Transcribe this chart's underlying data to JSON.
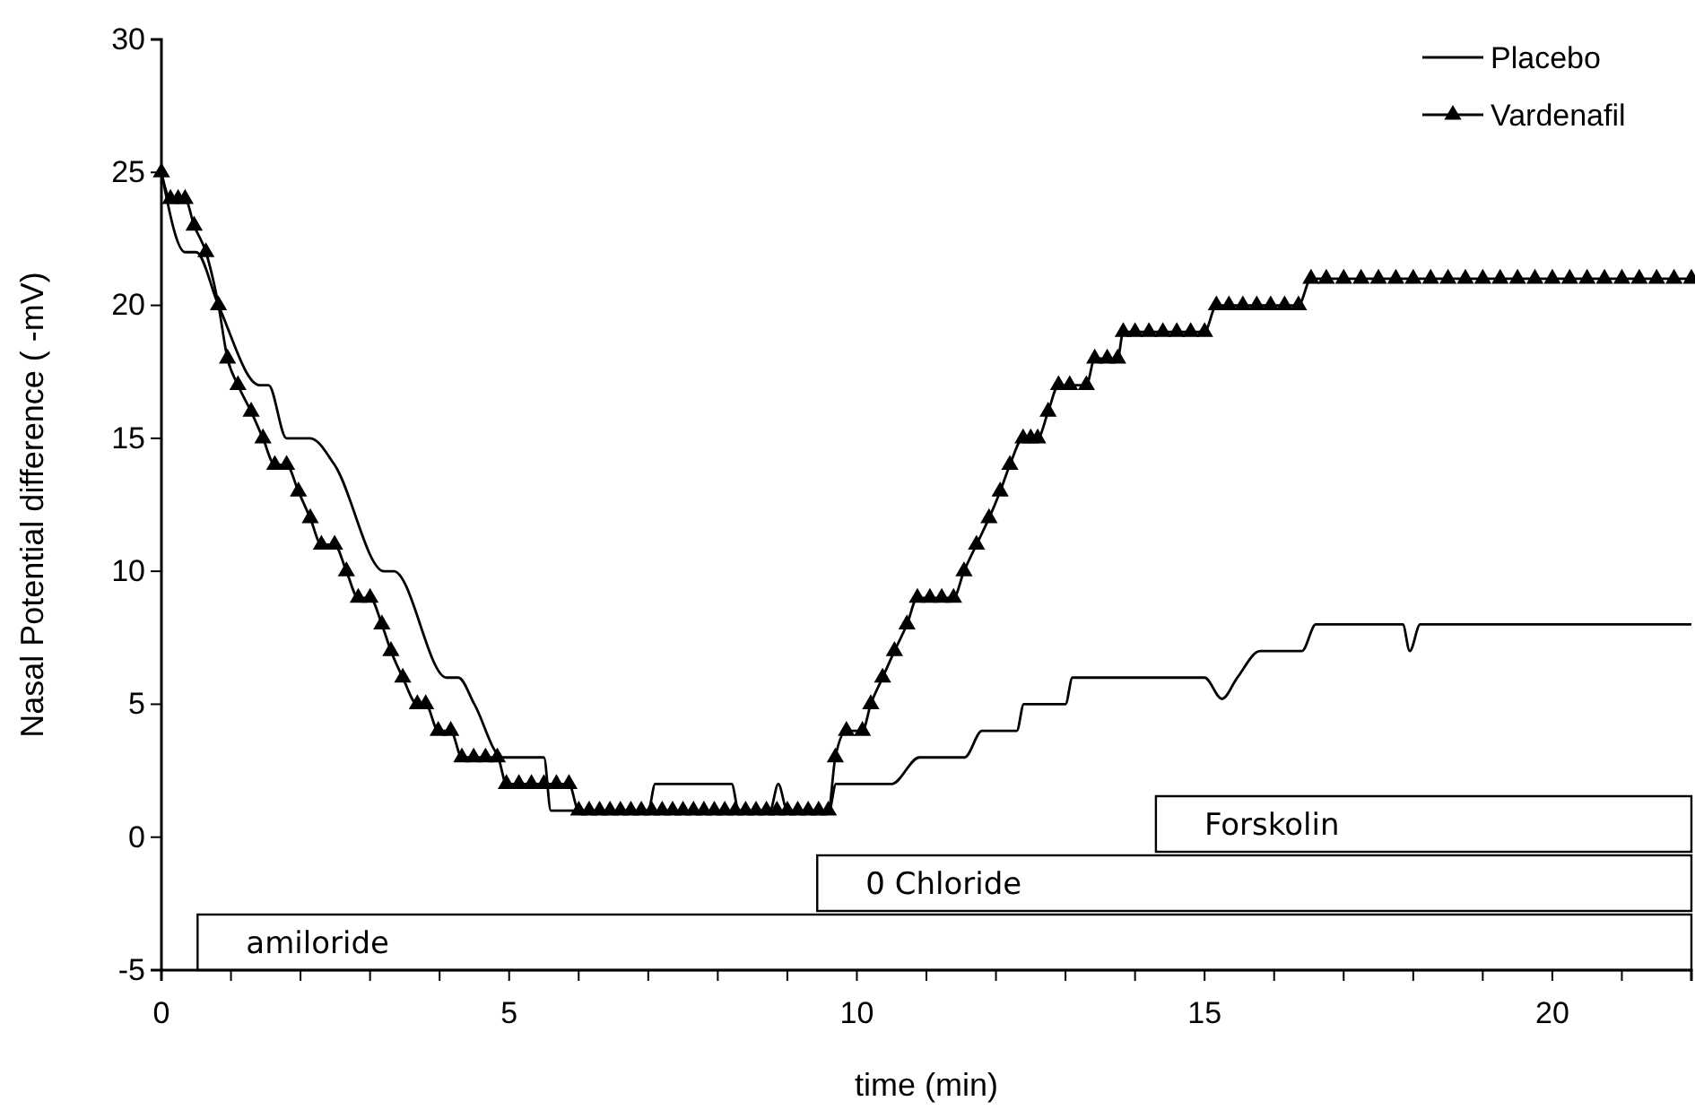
{
  "chart_data": {
    "type": "line",
    "xlabel": "time (min)",
    "ylabel": "Nasal Potential difference ( -mV)",
    "xlim": [
      0,
      22
    ],
    "xticks": [
      0,
      {
        "value": 1,
        "label": null
      },
      {
        "value": 2,
        "label": null
      },
      {
        "value": 3,
        "label": null
      },
      {
        "value": 4,
        "label": null
      },
      5,
      {
        "value": 6,
        "label": null
      },
      {
        "value": 7,
        "label": null
      },
      {
        "value": 8,
        "label": null
      },
      {
        "value": 9,
        "label": null
      },
      10,
      {
        "value": 11,
        "label": null
      },
      {
        "value": 12,
        "label": null
      },
      {
        "value": 13,
        "label": null
      },
      {
        "value": 14,
        "label": null
      },
      15,
      {
        "value": 16,
        "label": null
      },
      {
        "value": 17,
        "label": null
      },
      {
        "value": 18,
        "label": null
      },
      {
        "value": 19,
        "label": null
      },
      20,
      {
        "value": 21,
        "label": null
      },
      {
        "value": 22,
        "label": null
      }
    ],
    "ylim": [
      -5,
      30
    ],
    "yticks": [
      -5,
      0,
      5,
      10,
      15,
      20,
      25,
      30
    ],
    "grid": false,
    "legend": "top right",
    "line_style": "solid",
    "series": [
      {
        "name": "Placebo",
        "color": "#000000",
        "marker": "none",
        "x": [
          0,
          0.34,
          0.5,
          0.82,
          1.41,
          1.54,
          1.8,
          2.14,
          2.49,
          3.2,
          3.34,
          4.1,
          4.27,
          4.5,
          4.9,
          5.5,
          5.6,
          7.0,
          7.1,
          8.2,
          8.3,
          8.75,
          8.87,
          9.0,
          9.6,
          9.7,
          10.36,
          10.5,
          10.9,
          11.4,
          11.55,
          11.8,
          12.2,
          12.3,
          12.4,
          12.9,
          13.0,
          13.1,
          15.0,
          15.25,
          15.47,
          15.8,
          16.4,
          16.6,
          17.85,
          17.95,
          18.1,
          22
        ],
        "values": [
          25,
          22,
          22,
          20,
          17,
          17,
          15,
          15,
          14,
          10,
          10,
          6,
          6,
          5,
          3,
          3,
          1,
          1,
          2,
          2,
          1,
          1,
          2,
          1,
          1,
          2,
          2,
          2,
          3,
          3,
          3,
          4,
          4,
          4,
          5,
          5,
          5,
          6,
          6,
          5.2,
          6,
          7,
          7,
          8,
          8,
          7,
          8,
          8
        ]
      },
      {
        "name": "Vardenafil",
        "color": "#000000",
        "marker": "triangle",
        "x": [
          0,
          0.13,
          0.24,
          0.34,
          0.47,
          0.64,
          0.82,
          0.95,
          1.1,
          1.29,
          1.46,
          1.63,
          1.8,
          1.97,
          2.14,
          2.3,
          2.49,
          2.66,
          2.83,
          3.0,
          3.17,
          3.3,
          3.47,
          3.68,
          3.8,
          3.98,
          4.16,
          4.32,
          4.49,
          4.66,
          4.83,
          4.96,
          5.14,
          5.32,
          5.5,
          5.68,
          5.86,
          6.0,
          6.15,
          6.3,
          6.45,
          6.6,
          6.75,
          6.9,
          7.05,
          7.2,
          7.35,
          7.5,
          7.65,
          7.8,
          7.95,
          8.1,
          8.25,
          8.4,
          8.55,
          8.7,
          8.85,
          9.0,
          9.15,
          9.3,
          9.45,
          9.59,
          9.69,
          9.85,
          10.08,
          10.2,
          10.37,
          10.54,
          10.72,
          10.87,
          11.05,
          11.22,
          11.39,
          11.54,
          11.72,
          11.9,
          12.06,
          12.2,
          12.39,
          12.5,
          12.6,
          12.75,
          12.9,
          13.06,
          13.3,
          13.42,
          13.6,
          13.75,
          13.83,
          14.0,
          14.2,
          14.4,
          14.6,
          14.8,
          15.0,
          15.17,
          15.35,
          15.55,
          15.75,
          15.95,
          16.15,
          16.35,
          16.53,
          16.75,
          17.0,
          17.25,
          17.5,
          17.75,
          18.0,
          18.25,
          18.5,
          18.75,
          19.0,
          19.25,
          19.5,
          19.75,
          20.0,
          20.25,
          20.5,
          20.75,
          21.0,
          21.25,
          21.5,
          21.75,
          22
        ],
        "values": [
          25,
          24,
          24,
          24,
          23,
          22,
          20,
          18,
          17,
          16,
          15,
          14,
          14,
          13,
          12,
          11,
          11,
          10,
          9,
          9,
          8,
          7,
          6,
          5,
          5,
          4,
          4,
          3,
          3,
          3,
          3,
          2,
          2,
          2,
          2,
          2,
          2,
          1,
          1,
          1,
          1,
          1,
          1,
          1,
          1,
          1,
          1,
          1,
          1,
          1,
          1,
          1,
          1,
          1,
          1,
          1,
          1,
          1,
          1,
          1,
          1,
          1,
          3,
          4,
          4,
          5,
          6,
          7,
          8,
          9,
          9,
          9,
          9,
          10,
          11,
          12,
          13,
          14,
          15,
          15,
          15,
          16,
          17,
          17,
          17,
          18,
          18,
          18,
          19,
          19,
          19,
          19,
          19,
          19,
          19,
          20,
          20,
          20,
          20,
          20,
          20,
          20,
          21,
          21,
          21,
          21,
          21,
          21,
          21,
          21,
          21,
          21,
          21,
          21,
          21,
          21,
          21,
          21,
          21,
          21,
          21,
          21,
          21,
          21,
          21
        ]
      }
    ],
    "bands": [
      {
        "axis": "x",
        "from": 0.52,
        "to": 22,
        "label": "amiloride",
        "color": "#ffffff"
      },
      {
        "axis": "x",
        "from": 9.43,
        "to": 22,
        "label": "0 Chloride",
        "color": "#ffffff"
      },
      {
        "axis": "x",
        "from": 14.3,
        "to": 22,
        "label": "Forskolin",
        "color": "#ffffff"
      }
    ]
  }
}
